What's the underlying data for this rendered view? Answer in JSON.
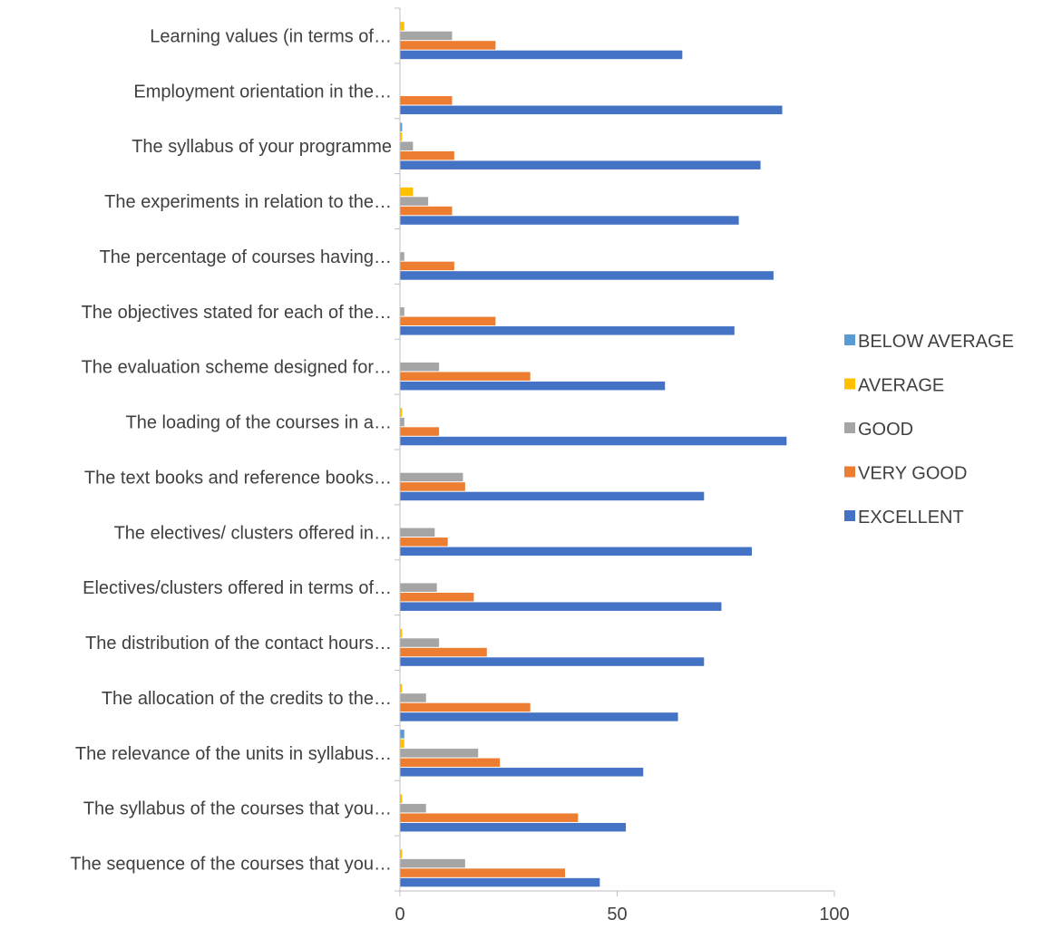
{
  "chart_data": {
    "type": "bar",
    "orientation": "horizontal",
    "title": "",
    "xlabel": "",
    "ylabel": "",
    "xlim": [
      0,
      100
    ],
    "xticks": [
      "0",
      "50",
      "100"
    ],
    "grid": false,
    "legend_position": "right",
    "categories": [
      "Learning values (in terms of…",
      "Employment orientation in the…",
      "The syllabus of your programme",
      "The experiments in relation to the…",
      "The percentage of courses having…",
      "The objectives stated for each of the…",
      "The evaluation scheme designed for…",
      "The loading of the courses in a…",
      "The text books and reference books…",
      "The electives/ clusters offered in…",
      "Electives/clusters offered in terms of…",
      "The distribution of the contact hours…",
      "The allocation of the credits to the…",
      "The relevance of the units in syllabus…",
      "The syllabus of the courses that you…",
      "The sequence of the courses that you…"
    ],
    "series": [
      {
        "name": "BELOW AVERAGE",
        "color": "#5B9BD5",
        "values": [
          0,
          0,
          0.5,
          0,
          0,
          0,
          0,
          0,
          0,
          0,
          0,
          0,
          0,
          1,
          0,
          0
        ]
      },
      {
        "name": "AVERAGE",
        "color": "#FFC000",
        "values": [
          1,
          0,
          0.5,
          3,
          0,
          0,
          0,
          0.5,
          0,
          0,
          0,
          0.5,
          0.5,
          1,
          0.5,
          0.5
        ]
      },
      {
        "name": "GOOD",
        "color": "#A5A5A5",
        "values": [
          12,
          0,
          3,
          6.5,
          1,
          1,
          9,
          1,
          14.5,
          8,
          8.5,
          9,
          6,
          18,
          6,
          15
        ]
      },
      {
        "name": "VERY GOOD",
        "color": "#ED7D31",
        "values": [
          22,
          12,
          12.5,
          12,
          12.5,
          22,
          30,
          9,
          15,
          11,
          17,
          20,
          30,
          23,
          41,
          38
        ]
      },
      {
        "name": "EXCELLENT",
        "color": "#4472C4",
        "values": [
          65,
          88,
          83,
          78,
          86,
          77,
          61,
          89,
          70,
          81,
          74,
          70,
          64,
          56,
          52,
          46
        ]
      }
    ]
  }
}
